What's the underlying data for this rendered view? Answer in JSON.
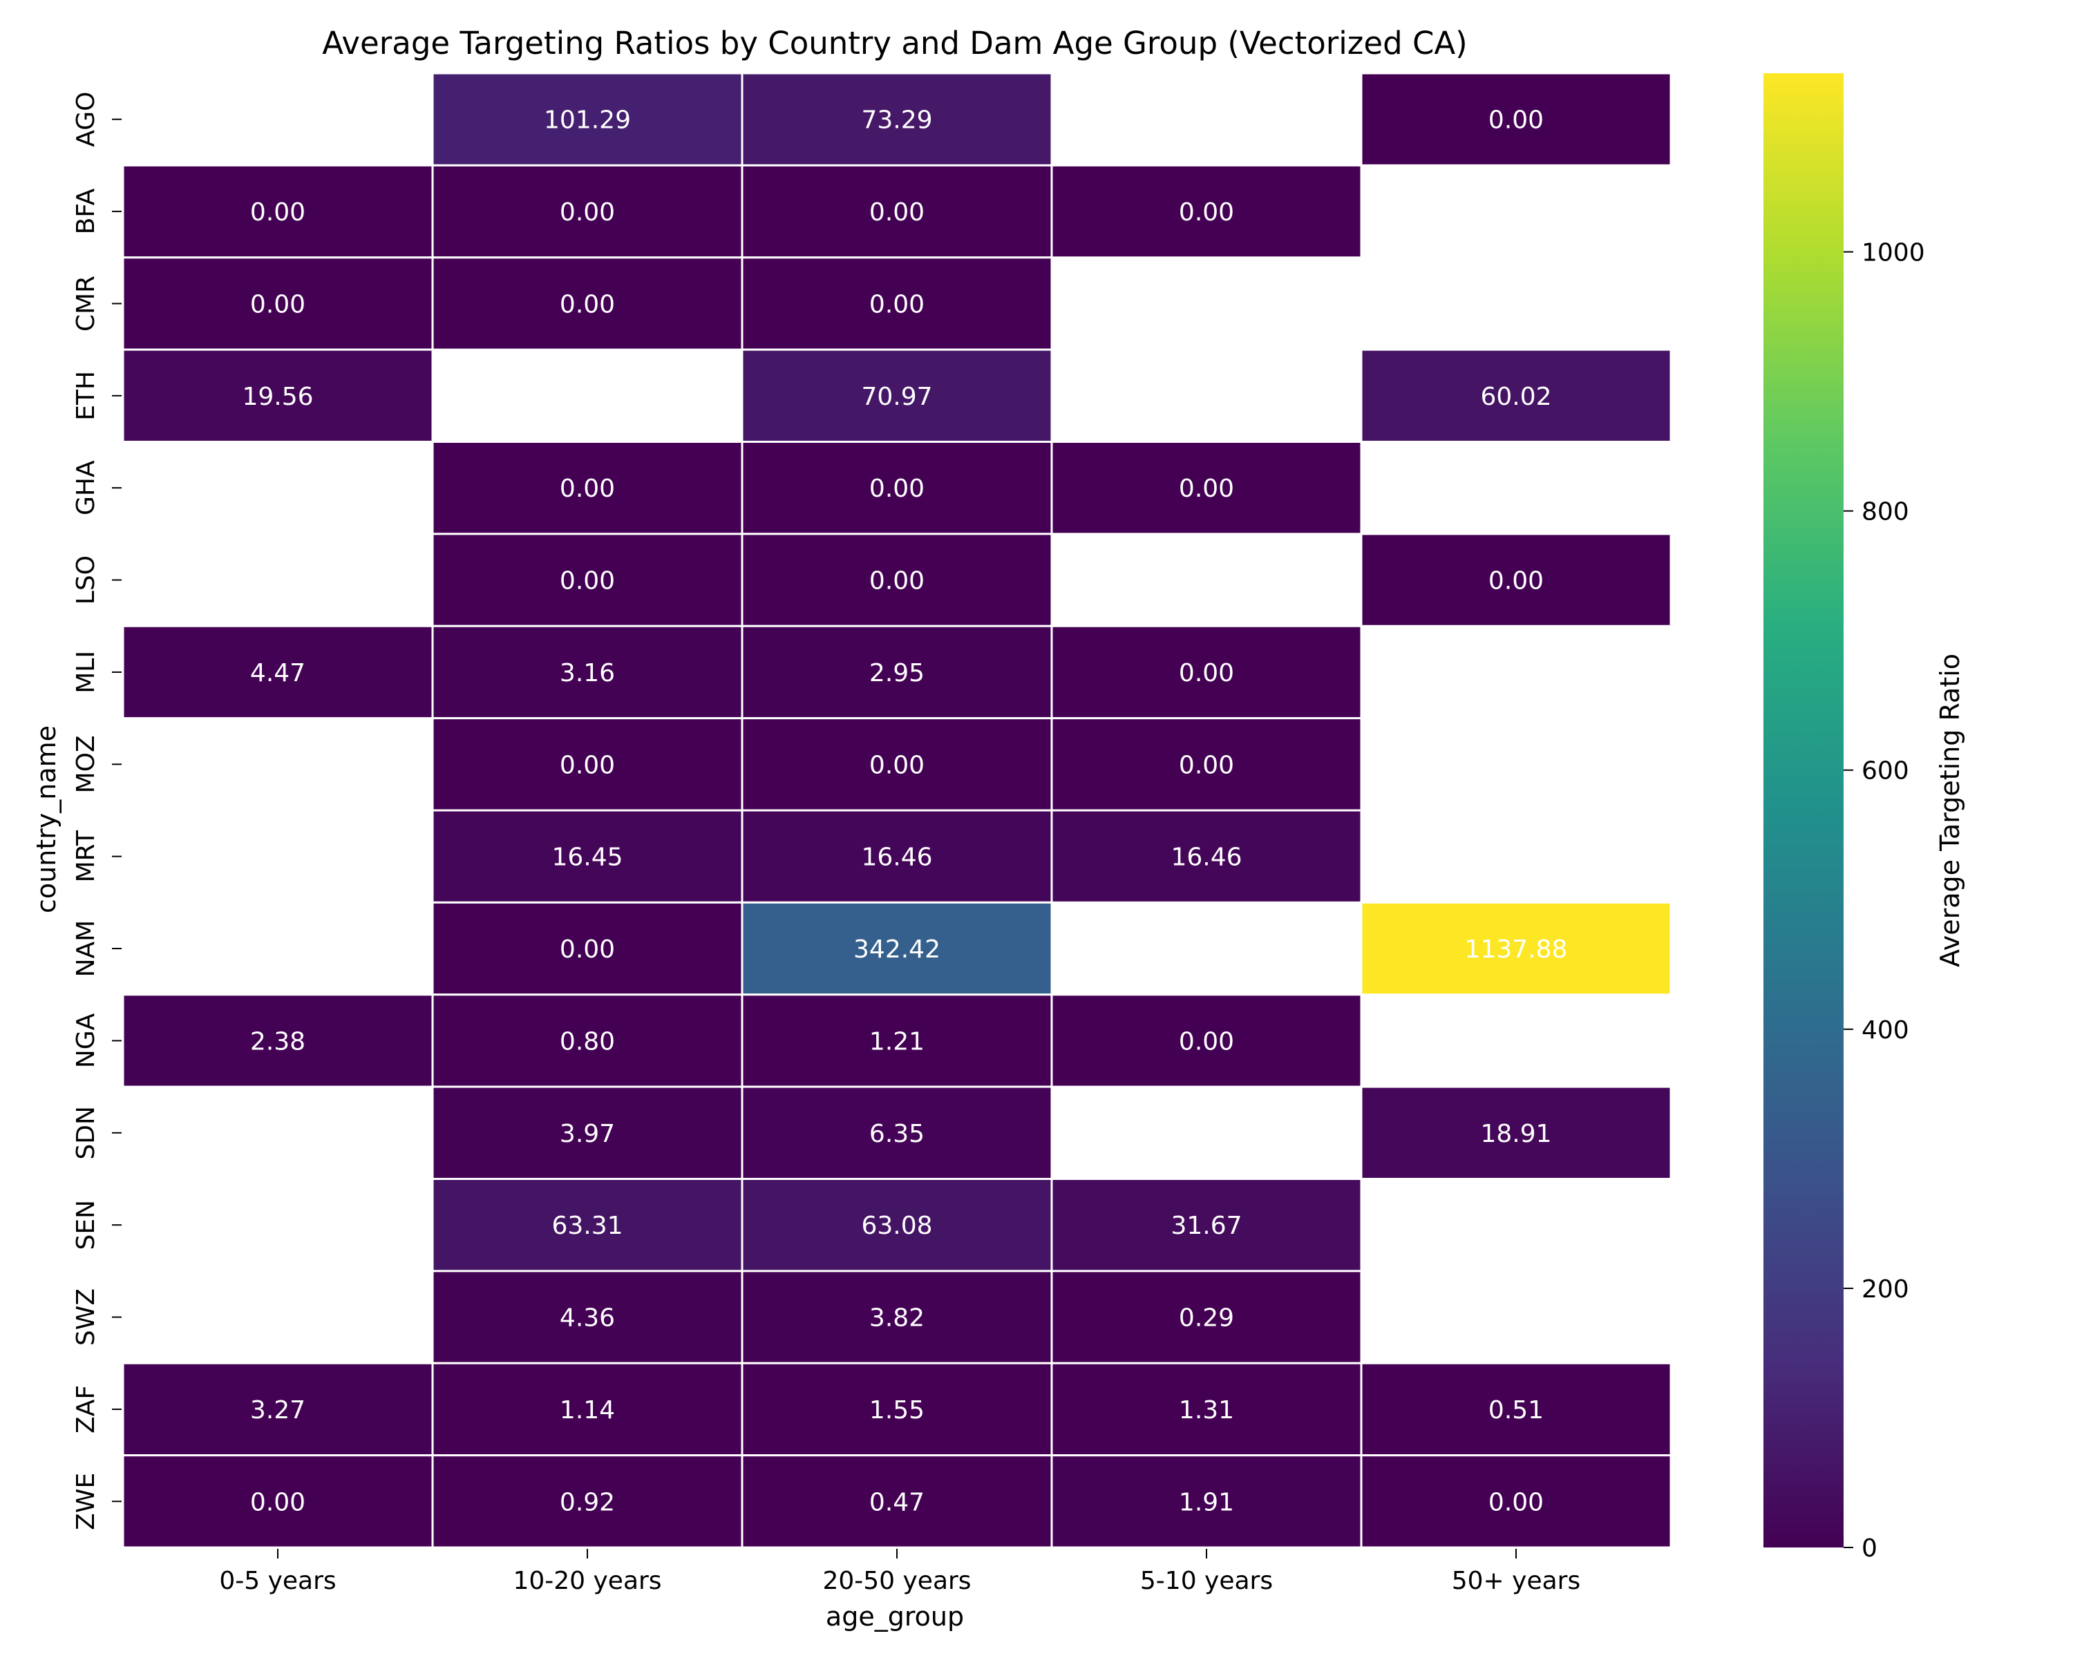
{
  "chart_data": {
    "type": "heatmap",
    "title": "Average Targeting Ratios by Country and Dam Age Group (Vectorized CA)",
    "xlabel": "age_group",
    "ylabel": "country_name",
    "x_categories": [
      "0-5 years",
      "10-20 years",
      "20-50 years",
      "5-10 years",
      "50+ years"
    ],
    "y_categories": [
      "AGO",
      "BFA",
      "CMR",
      "ETH",
      "GHA",
      "LSO",
      "MLI",
      "MOZ",
      "MRT",
      "NAM",
      "NGA",
      "SDN",
      "SEN",
      "SWZ",
      "ZAF",
      "ZWE"
    ],
    "values": [
      [
        null,
        101.29,
        73.29,
        null,
        0.0
      ],
      [
        0.0,
        0.0,
        0.0,
        0.0,
        null
      ],
      [
        0.0,
        0.0,
        0.0,
        null,
        null
      ],
      [
        19.56,
        null,
        70.97,
        null,
        60.02
      ],
      [
        null,
        0.0,
        0.0,
        0.0,
        null
      ],
      [
        null,
        0.0,
        0.0,
        null,
        0.0
      ],
      [
        4.47,
        3.16,
        2.95,
        0.0,
        null
      ],
      [
        null,
        0.0,
        0.0,
        0.0,
        null
      ],
      [
        null,
        16.45,
        16.46,
        16.46,
        null
      ],
      [
        null,
        0.0,
        342.42,
        null,
        1137.88
      ],
      [
        2.38,
        0.8,
        1.21,
        0.0,
        null
      ],
      [
        null,
        3.97,
        6.35,
        null,
        18.91
      ],
      [
        null,
        63.31,
        63.08,
        31.67,
        null
      ],
      [
        null,
        4.36,
        3.82,
        0.29,
        null
      ],
      [
        3.27,
        1.14,
        1.55,
        1.31,
        0.51
      ],
      [
        0.0,
        0.92,
        0.47,
        1.91,
        0.0
      ]
    ],
    "colormap": "viridis",
    "color_range": [
      0,
      1137.88
    ],
    "colorbar_label": "Average Targeting Ratio",
    "colorbar_ticks": [
      0,
      200,
      400,
      600,
      800,
      1000
    ],
    "cell_text_color": "#ffffff",
    "cell_border_color": "#ffffff",
    "grid": false,
    "legend": "colorbar-right"
  }
}
